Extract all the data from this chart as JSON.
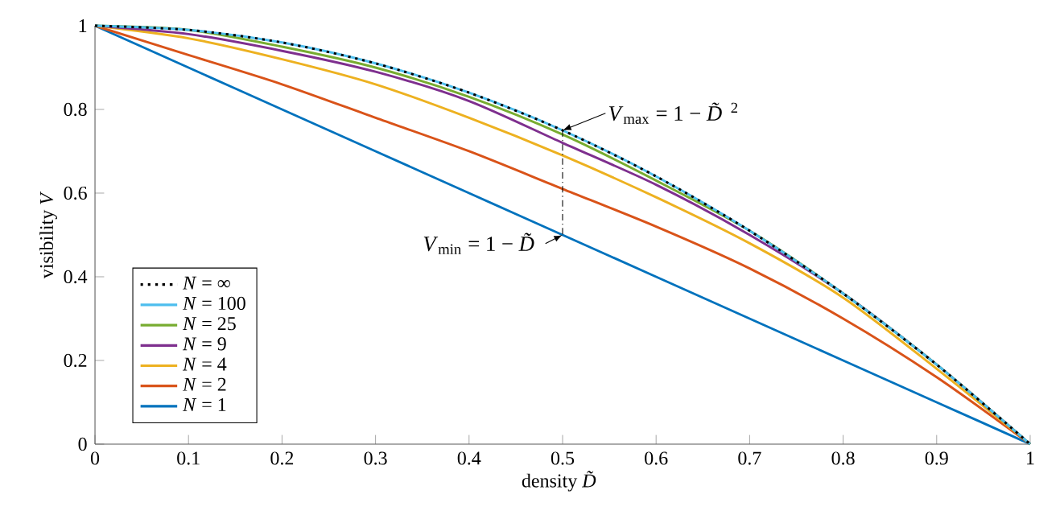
{
  "chart_data": {
    "type": "line",
    "xlabel": "density *D̃*",
    "ylabel": "visibility *V*",
    "x": [
      0,
      0.1,
      0.2,
      0.3,
      0.4,
      0.5,
      0.6,
      0.7,
      0.8,
      0.9,
      1
    ],
    "series": [
      {
        "name": "*N* = ∞",
        "color": "#000000",
        "line_style": "dotted",
        "values": [
          1,
          0.99,
          0.96,
          0.91,
          0.84,
          0.75,
          0.64,
          0.51,
          0.36,
          0.19,
          0
        ]
      },
      {
        "name": "*N* = 100",
        "color": "#4dbeee",
        "values": [
          1,
          0.99,
          0.96,
          0.91,
          0.84,
          0.75,
          0.64,
          0.51,
          0.36,
          0.19,
          0
        ]
      },
      {
        "name": "*N* = 25",
        "color": "#77ac30",
        "values": [
          1,
          0.99,
          0.95,
          0.9,
          0.83,
          0.74,
          0.63,
          0.51,
          0.36,
          0.19,
          0
        ]
      },
      {
        "name": "*N* = 9",
        "color": "#7e2f8e",
        "values": [
          1,
          0.98,
          0.94,
          0.89,
          0.82,
          0.72,
          0.62,
          0.5,
          0.36,
          0.19,
          0
        ]
      },
      {
        "name": "*N* = 4",
        "color": "#edb120",
        "values": [
          1,
          0.97,
          0.92,
          0.86,
          0.78,
          0.69,
          0.59,
          0.48,
          0.35,
          0.18,
          0
        ]
      },
      {
        "name": "*N* = 2",
        "color": "#d95319",
        "values": [
          1,
          0.93,
          0.86,
          0.78,
          0.7,
          0.61,
          0.52,
          0.42,
          0.3,
          0.16,
          0
        ]
      },
      {
        "name": "*N* = 1",
        "color": "#0072bd",
        "values": [
          1,
          0.9,
          0.8,
          0.7,
          0.6,
          0.5,
          0.4,
          0.3,
          0.2,
          0.1,
          0
        ]
      }
    ],
    "xlim": [
      0,
      1
    ],
    "ylim": [
      0,
      1
    ],
    "xticks": [
      0,
      0.1,
      0.2,
      0.3,
      0.4,
      0.5,
      0.6,
      0.7,
      0.8,
      0.9,
      1
    ],
    "yticks": [
      0,
      0.2,
      0.4,
      0.6,
      0.8,
      1
    ],
    "annotations": [
      {
        "text": "*V*$_{max}$ = 1 − *D̃*$^{2}$",
        "x": 0.5,
        "y": 0.75
      },
      {
        "text": "*V*$_{min}$ = 1 − *D̃*",
        "x": 0.5,
        "y": 0.5
      }
    ],
    "legend": "bottom left",
    "grid": false,
    "line_style": "solid"
  }
}
